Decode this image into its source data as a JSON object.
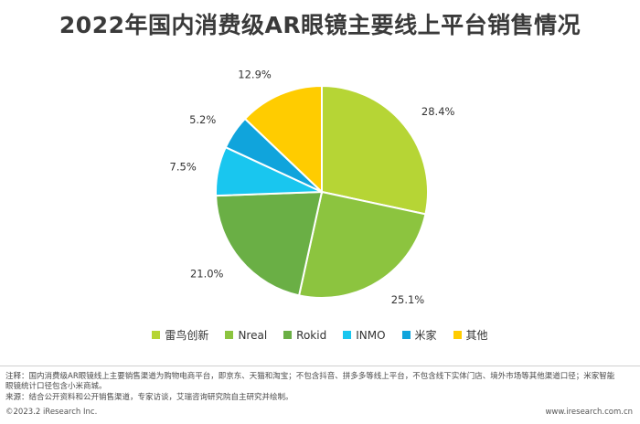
{
  "title": "2022年国内消费级AR眼镜主要线上平台销售情况",
  "chart_data": {
    "type": "pie",
    "title": "2022年国内消费级AR眼镜主要线上平台销售情况",
    "categories": [
      "雷鸟创新",
      "Nreal",
      "Rokid",
      "INMO",
      "米家",
      "其他"
    ],
    "values": [
      28.4,
      25.1,
      21.0,
      7.5,
      5.2,
      12.9
    ],
    "labels": [
      "28.4%",
      "25.1%",
      "21.0%",
      "7.5%",
      "5.2%",
      "12.9%"
    ],
    "colors": [
      "#b6d535",
      "#8cc43f",
      "#6aaf45",
      "#19c6ef",
      "#10a4dc",
      "#ffcc00"
    ],
    "legend_position": "bottom"
  },
  "notes": {
    "line1": "注释：国内消费级AR眼镜线上主要销售渠道为购物电商平台，即京东、天猫和淘宝；不包含抖音、拼多多等线上平台，不包含线下实体门店、境外市场等其他渠道口径；米家智能",
    "line2": "眼镜统计口径包含小米商城。",
    "line3": "来源：结合公开资料和公开销售渠道，专家访谈，艾瑞咨询研究院自主研究并绘制。"
  },
  "footer": {
    "copyright": "©2023.2 iResearch Inc.",
    "website": "www.iresearch.com.cn"
  }
}
